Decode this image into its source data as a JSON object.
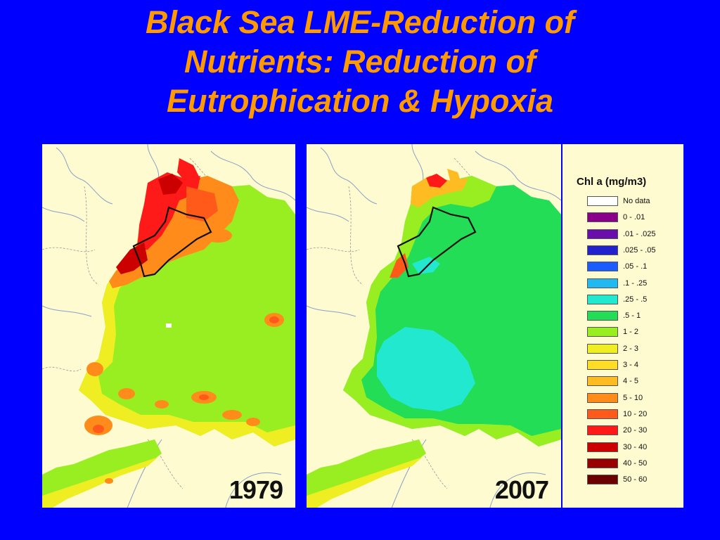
{
  "title": {
    "line1": "Black Sea LME-Reduction of",
    "line2": "Nutrients: Reduction of",
    "line3": "Eutrophication & Hypoxia"
  },
  "maps": [
    {
      "year": "1979"
    },
    {
      "year": "2007"
    }
  ],
  "legend": {
    "title": "Chl a (mg/m3)",
    "items": [
      {
        "label": "No data",
        "color": "#ffffff"
      },
      {
        "label": "0 - .01",
        "color": "#8b008b"
      },
      {
        "label": ".01 - .025",
        "color": "#6a0dad"
      },
      {
        "label": ".025 - .05",
        "color": "#2222cc"
      },
      {
        "label": ".05 - .1",
        "color": "#1a5cff"
      },
      {
        "label": ".1 - .25",
        "color": "#22b8f0"
      },
      {
        "label": ".25 - .5",
        "color": "#22e8d0"
      },
      {
        "label": ".5 - 1",
        "color": "#22dd55"
      },
      {
        "label": "1 - 2",
        "color": "#99ee22"
      },
      {
        "label": "2 - 3",
        "color": "#eeee22"
      },
      {
        "label": "3 - 4",
        "color": "#ffdd22"
      },
      {
        "label": "4 - 5",
        "color": "#ffbb22"
      },
      {
        "label": "5 - 10",
        "color": "#ff8c1a"
      },
      {
        "label": "10 - 20",
        "color": "#ff5a1a"
      },
      {
        "label": "20 - 30",
        "color": "#ff1a1a"
      },
      {
        "label": "30 - 40",
        "color": "#cc0000"
      },
      {
        "label": "40 - 50",
        "color": "#990000"
      },
      {
        "label": "50 - 60",
        "color": "#6b0000"
      }
    ]
  }
}
